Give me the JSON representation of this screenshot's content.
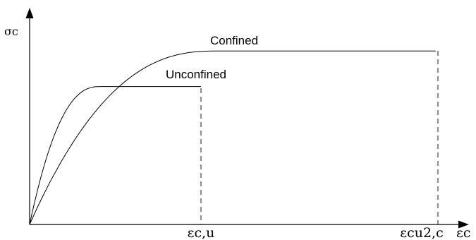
{
  "chart_data": {
    "type": "line",
    "title": "",
    "xlabel": "εc",
    "ylabel": "σc",
    "grid": false,
    "legend": "none",
    "x_markers": [
      {
        "name": "ecu",
        "label": "εc,u"
      },
      {
        "name": "ecu2c",
        "label": "εcu2,c"
      }
    ],
    "series": [
      {
        "name": "Unconfined",
        "peak_strain": 0.41,
        "plateau": 0.66,
        "end_strain": 1.0
      },
      {
        "name": "Confined",
        "peak_strain": 1.08,
        "plateau": 0.83,
        "end_strain": 2.37
      }
    ]
  }
}
